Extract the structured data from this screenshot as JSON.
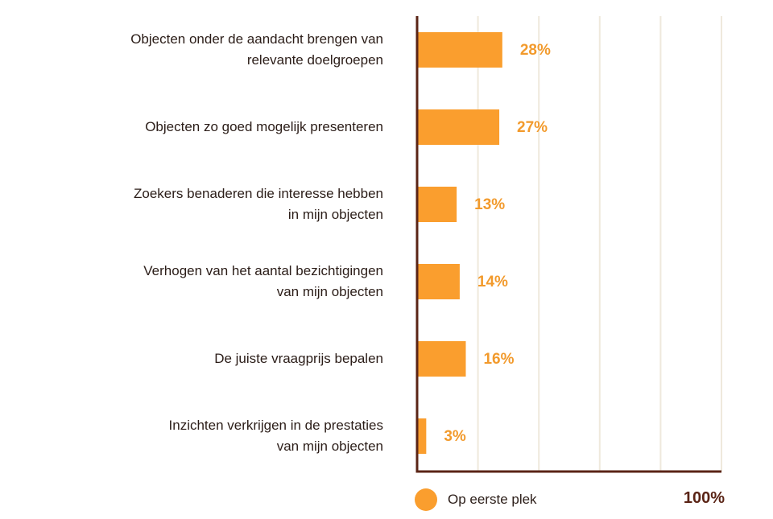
{
  "chart_data": {
    "type": "bar",
    "orientation": "horizontal",
    "categories": [
      [
        "Objecten onder de aandacht brengen van",
        "relevante doelgroepen"
      ],
      [
        "Objecten zo goed mogelijk presenteren"
      ],
      [
        "Zoekers benaderen die interesse hebben",
        "in mijn objecten"
      ],
      [
        "Verhogen van het aantal bezichtigingen",
        "van mijn objecten"
      ],
      [
        "De juiste vraagprijs bepalen"
      ],
      [
        "Inzichten verkrijgen in de prestaties",
        "van mijn objecten"
      ]
    ],
    "series": [
      {
        "name": "Op eerste plek",
        "values": [
          28,
          27,
          13,
          14,
          16,
          3
        ]
      }
    ],
    "value_labels": [
      "28%",
      "27%",
      "13%",
      "14%",
      "16%",
      "3%"
    ],
    "xlim": [
      0,
      100
    ],
    "x_max_label": "100%",
    "grid": true,
    "legend": {
      "position": "bottom-left",
      "label": "Op eerste plek"
    },
    "colors": {
      "bar": "#fa9e2e",
      "axis": "#5a2416",
      "grid": "#efe9dc",
      "label": "#f29a2c"
    }
  }
}
